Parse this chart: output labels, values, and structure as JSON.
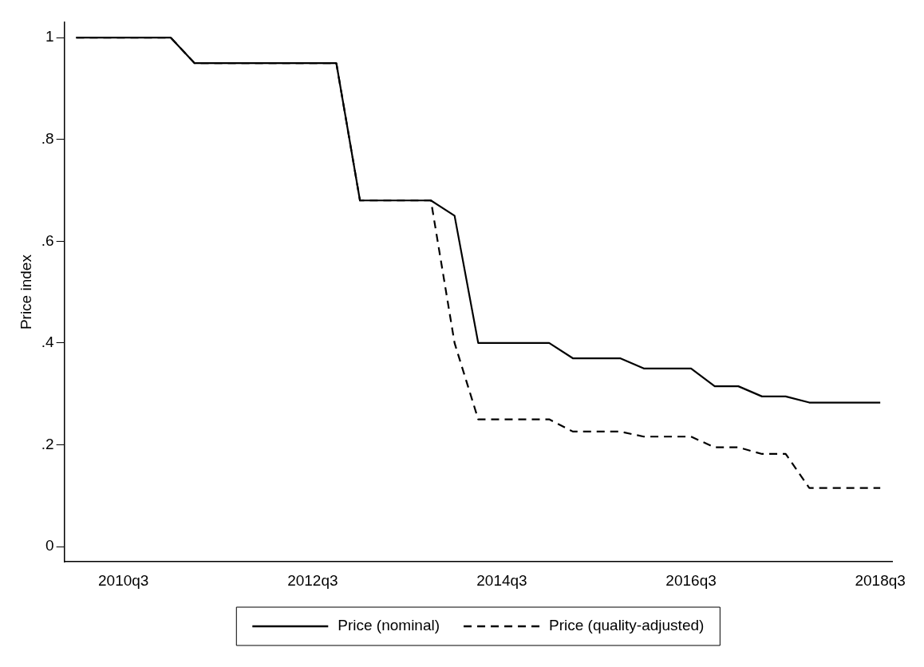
{
  "chart_data": {
    "type": "line",
    "ylabel": "Price index",
    "categories": [
      null,
      null,
      "2010q3",
      null,
      null,
      null,
      null,
      null,
      null,
      null,
      "2012q3",
      null,
      null,
      null,
      null,
      null,
      null,
      null,
      "2014q3",
      null,
      null,
      null,
      null,
      null,
      null,
      null,
      "2016q3",
      null,
      null,
      null,
      null,
      null,
      null,
      null,
      "2018q3"
    ],
    "series": [
      {
        "name": "Price (nominal)",
        "color": "#000000",
        "line_style": "solid",
        "values": [
          1,
          1,
          1,
          1,
          1,
          0.95,
          0.95,
          0.95,
          0.95,
          0.95,
          0.95,
          0.95,
          0.68,
          0.68,
          0.68,
          0.68,
          0.65,
          0.4,
          0.4,
          0.4,
          0.4,
          0.37,
          0.37,
          0.37,
          0.35,
          0.35,
          0.35,
          0.315,
          0.315,
          0.295,
          0.295,
          0.283,
          0.283,
          0.283,
          0.283
        ]
      },
      {
        "name": "Price (quality-adjusted)",
        "color": "#000000",
        "line_style": "dashed",
        "values": [
          1,
          1,
          1,
          1,
          1,
          0.95,
          0.95,
          0.95,
          0.95,
          0.95,
          0.95,
          0.95,
          0.68,
          0.68,
          0.68,
          0.68,
          0.4,
          0.25,
          0.25,
          0.25,
          0.25,
          0.226,
          0.226,
          0.226,
          0.216,
          0.216,
          0.216,
          0.195,
          0.195,
          0.182,
          0.182,
          0.115,
          0.115,
          0.115,
          0.115
        ]
      }
    ],
    "ylim": [
      -0.03,
      1.03
    ],
    "yticks": [
      0,
      {
        "value": 0.2,
        "label": ".2"
      },
      {
        "value": 0.4,
        "label": ".4"
      },
      {
        "value": 0.6,
        "label": ".6"
      },
      {
        "value": 0.8,
        "label": ".8"
      },
      1
    ],
    "grid": false,
    "legend": "bottom",
    "marker": "none"
  }
}
